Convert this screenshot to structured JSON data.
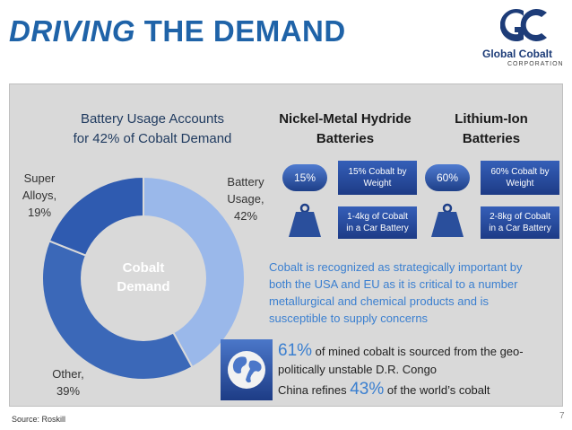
{
  "title": {
    "part1": "DRIVING",
    "part2": "THE DEMAND"
  },
  "logo": {
    "name": "Global Cobalt",
    "sub": "CORPORATION"
  },
  "chart_data": {
    "type": "pie",
    "title_line1": "Battery Usage Accounts",
    "title_line2": "for 42% of Cobalt Demand",
    "center_label_line1": "Cobalt",
    "center_label_line2": "Demand",
    "slices": [
      {
        "label_line1": "Battery",
        "label_line2": "Usage,",
        "label_line3": "42%",
        "value": 42,
        "color": "#9ab8ea"
      },
      {
        "label_line1": "Other,",
        "label_line2": "39%",
        "value": 39,
        "color": "#3b68b8"
      },
      {
        "label_line1": "Super",
        "label_line2": "Alloys,",
        "label_line3": "19%",
        "value": 19,
        "color": "#2f5bb0"
      }
    ]
  },
  "nimh": {
    "title_line1": "Nickel-Metal Hydride",
    "title_line2": "Batteries",
    "pill": "15%",
    "box1_line1": "15% Cobalt by",
    "box1_line2": "Weight",
    "box2_line1": "1-4kg of Cobalt",
    "box2_line2": "in a Car Battery"
  },
  "liion": {
    "title_line1": "Lithium-Ion",
    "title_line2": "Batteries",
    "pill": "60%",
    "box1_line1": "60% Cobalt by",
    "box1_line2": "Weight",
    "box2_line1": "2-8kg of Cobalt",
    "box2_line2": "in a Car Battery"
  },
  "body": {
    "line1": "Cobalt is recognized as strategically important by",
    "line2": "both the USA and EU as it is critical to a number",
    "line3": "metallurgical and chemical products and is",
    "line4": "susceptible to supply concerns"
  },
  "stats": {
    "s1_big": "61%",
    "s1_rest": " of mined cobalt is sourced from the geo-",
    "s1_line2": "politically unstable D.R. Congo",
    "s2_pre": "China refines ",
    "s2_big": "43%",
    "s2_post": " of the world’s cobalt"
  },
  "page_number": "7",
  "source": "Source: Roskill"
}
